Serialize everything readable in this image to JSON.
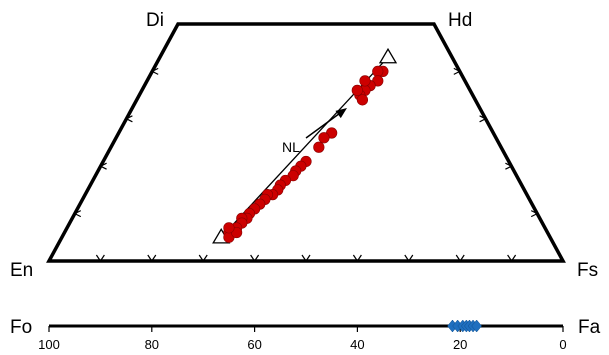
{
  "chart_data": [
    {
      "type": "scatter",
      "title": "",
      "diagram": "pyroxene quadrilateral",
      "corners": {
        "top_left": "Di",
        "top_right": "Hd",
        "bottom_left": "En",
        "bottom_right": "Fs"
      },
      "grid": false,
      "annotation": "NL",
      "tie_line_endpoints": [
        {
          "fs": 44.5,
          "wo": 43
        },
        {
          "fs": 31,
          "wo": 5
        }
      ],
      "points": [
        {
          "fs": 45.0,
          "wo": 40
        },
        {
          "fs": 44.0,
          "wo": 40
        },
        {
          "fs": 45.0,
          "wo": 38
        },
        {
          "fs": 44.0,
          "wo": 37
        },
        {
          "fs": 43.5,
          "wo": 36
        },
        {
          "fs": 43.0,
          "wo": 35
        },
        {
          "fs": 44.0,
          "wo": 34
        },
        {
          "fs": 42.5,
          "wo": 38
        },
        {
          "fs": 42.0,
          "wo": 36
        },
        {
          "fs": 41.5,
          "wo": 27
        },
        {
          "fs": 40.5,
          "wo": 26
        },
        {
          "fs": 40.5,
          "wo": 24
        },
        {
          "fs": 39.5,
          "wo": 21
        },
        {
          "fs": 39.0,
          "wo": 20
        },
        {
          "fs": 38.5,
          "wo": 19
        },
        {
          "fs": 38.5,
          "wo": 18
        },
        {
          "fs": 37.5,
          "wo": 17
        },
        {
          "fs": 37.0,
          "wo": 16
        },
        {
          "fs": 37.0,
          "wo": 15
        },
        {
          "fs": 36.5,
          "wo": 14
        },
        {
          "fs": 35.5,
          "wo": 14
        },
        {
          "fs": 35.5,
          "wo": 13
        },
        {
          "fs": 35.0,
          "wo": 12
        },
        {
          "fs": 34.5,
          "wo": 11
        },
        {
          "fs": 34.0,
          "wo": 10
        },
        {
          "fs": 34.0,
          "wo": 9
        },
        {
          "fs": 33.0,
          "wo": 9
        },
        {
          "fs": 33.5,
          "wo": 8
        },
        {
          "fs": 33.0,
          "wo": 7
        },
        {
          "fs": 32.5,
          "wo": 6
        },
        {
          "fs": 32.0,
          "wo": 6
        },
        {
          "fs": 32.5,
          "wo": 5
        },
        {
          "fs": 33.5,
          "wo": 6
        },
        {
          "fs": 31.5,
          "wo": 7
        }
      ],
      "point_color": "#cc0000"
    },
    {
      "type": "scatter",
      "title": "",
      "end_members": {
        "left": "Fo",
        "right": "Fa"
      },
      "xlim": [
        100,
        0
      ],
      "ticks": [
        100,
        80,
        60,
        40,
        20,
        0
      ],
      "tick_labels": [
        "100",
        "80",
        "60",
        "40",
        "20",
        "0"
      ],
      "grid": false,
      "points": [
        21.5,
        20.5,
        19.5,
        18.8,
        18.2,
        17.5,
        16.8
      ],
      "point_color": "#1f6fbf"
    }
  ]
}
